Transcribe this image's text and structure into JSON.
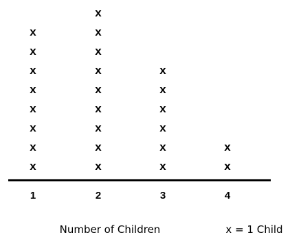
{
  "chart_data": {
    "type": "line plot",
    "categories": [
      "1",
      "2",
      "3",
      "4"
    ],
    "values": [
      8,
      9,
      6,
      2
    ],
    "marker": "x",
    "xlabel": "Number of Children",
    "legend": "x = 1 Child"
  }
}
